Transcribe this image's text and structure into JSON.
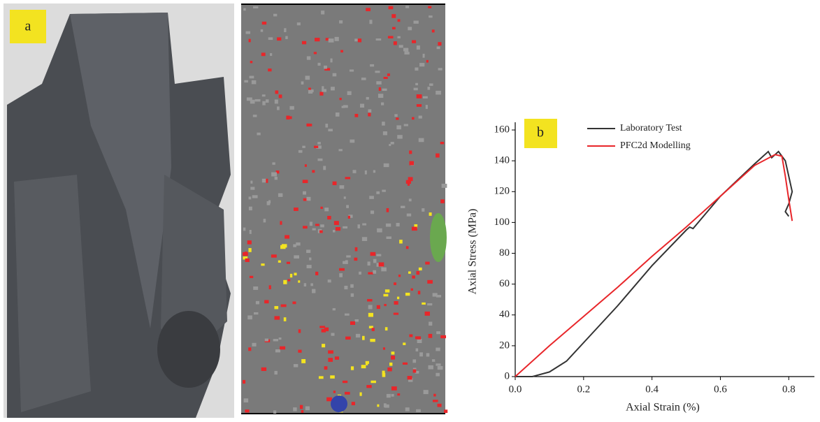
{
  "photo_label": "a",
  "chart_data": {
    "type": "line",
    "panel_label": "b",
    "x_label": "Axial Strain (%)",
    "y_label": "Axial Stress (MPa)",
    "xlim": [
      0,
      0.875
    ],
    "ylim": [
      0,
      165
    ],
    "xticks": [
      {
        "value": 0,
        "label": "0.0"
      },
      0.2,
      0.4,
      0.6,
      0.8
    ],
    "yticks": [
      0,
      20,
      40,
      60,
      80,
      100,
      120,
      140,
      160
    ],
    "legend": "upper-left",
    "series": [
      {
        "name": "Laboratory Test",
        "color": "#333333",
        "x": [
          0,
          0.05,
          0.1,
          0.15,
          0.2,
          0.3,
          0.4,
          0.5,
          0.51,
          0.52,
          0.6,
          0.7,
          0.74,
          0.75,
          0.77,
          0.79,
          0.8,
          0.81,
          0.8,
          0.79,
          0.8
        ],
        "values": [
          0,
          0,
          3,
          10,
          22,
          46,
          72,
          95,
          97,
          96,
          117,
          138,
          146,
          142,
          146,
          140,
          130,
          120,
          112,
          107,
          104
        ]
      },
      {
        "name": "PFC2d Modelling",
        "color": "#e8262a",
        "x": [
          0,
          0.1,
          0.2,
          0.3,
          0.4,
          0.5,
          0.6,
          0.7,
          0.76,
          0.78,
          0.79,
          0.8,
          0.81
        ],
        "values": [
          0,
          20,
          39,
          58,
          78,
          97,
          117,
          137,
          144,
          143,
          130,
          115,
          101
        ]
      }
    ]
  }
}
